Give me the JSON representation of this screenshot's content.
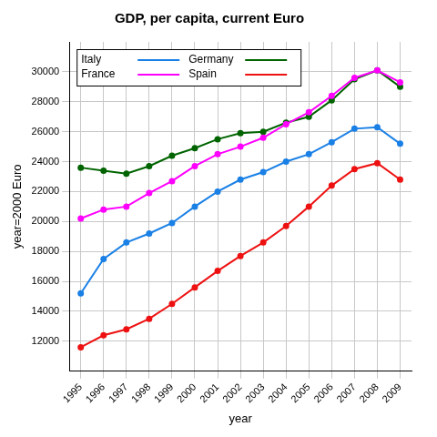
{
  "chart_data": {
    "type": "line",
    "title": "GDP, per capita, current Euro",
    "x_label": "year",
    "y_label": "year=2000 Euro",
    "categories": [
      "1995",
      "1996",
      "1997",
      "1998",
      "1999",
      "2000",
      "2001",
      "2002",
      "2003",
      "2004",
      "2005",
      "2006",
      "2007",
      "2008",
      "2009"
    ],
    "series": [
      {
        "name": "Italy",
        "color": "#1a80e6",
        "marker": "circle",
        "line_style": "solid",
        "values": [
          15200,
          17500,
          18600,
          19200,
          19900,
          21000,
          22000,
          22800,
          23300,
          24000,
          24500,
          25300,
          26200,
          26300,
          25200
        ]
      },
      {
        "name": "France",
        "color": "#ff00ff",
        "marker": "circle",
        "line_style": "solid",
        "values": [
          20200,
          20800,
          21000,
          21900,
          22700,
          23700,
          24500,
          25000,
          25600,
          26500,
          27300,
          28400,
          29600,
          30100,
          29300
        ]
      },
      {
        "name": "Germany",
        "color": "#006400",
        "marker": "circle",
        "line_style": "solid",
        "values": [
          23600,
          23400,
          23200,
          23700,
          24400,
          24900,
          25500,
          25900,
          26000,
          26600,
          27000,
          28100,
          29500,
          30100,
          29000
        ]
      },
      {
        "name": "Spain",
        "color": "#ee1111",
        "marker": "circle",
        "line_style": "solid",
        "values": [
          11600,
          12400,
          12800,
          13500,
          14500,
          15600,
          16700,
          17700,
          18600,
          19700,
          21000,
          22400,
          23500,
          23900,
          22800
        ]
      }
    ],
    "ylim": [
      10000,
      32000
    ],
    "yticks": [
      12000,
      14000,
      16000,
      18000,
      20000,
      22000,
      24000,
      26000,
      28000,
      30000
    ],
    "grid": true,
    "legend": "top-left"
  }
}
